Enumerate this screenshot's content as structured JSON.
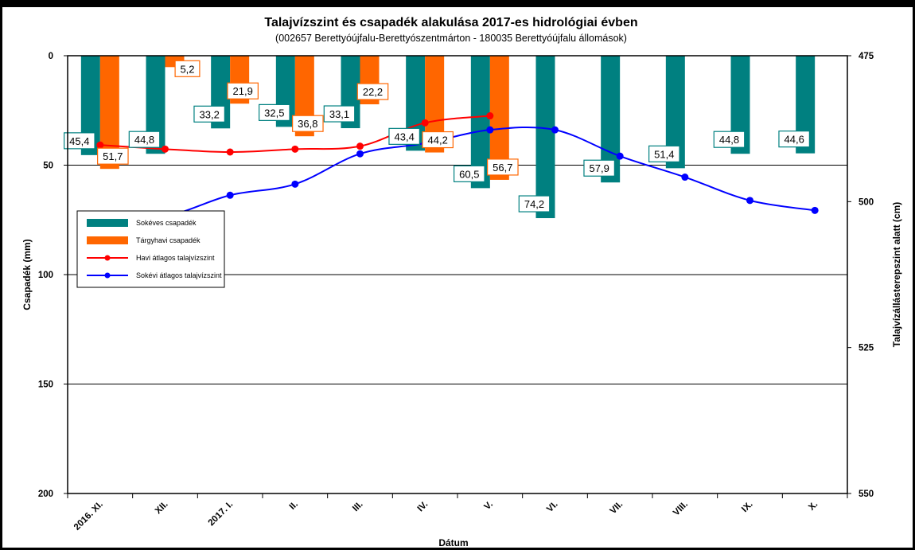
{
  "chart_data": {
    "type": "bar+line",
    "title": "Talajvízszint és csapadék alakulása 2017-es hidrológiai évben",
    "subtitle": "(002657  Berettyóújfalu-Berettyószentmárton  - 180035  Berettyóújfalu állomások)",
    "xlabel": "Dátum",
    "ylabel_left": "Csapadék (mm)",
    "ylabel_right": "Talajvízállásterepszint alatt (cm)",
    "categories": [
      "2016. XI.",
      "XII.",
      "2017. I.",
      "II.",
      "III.",
      "IV.",
      "V.",
      "VI.",
      "VII.",
      "VIII.",
      "IX.",
      "X."
    ],
    "left_axis": {
      "range": [
        0,
        200
      ],
      "inverted": true,
      "ticks": [
        "0",
        "50",
        "100",
        "150",
        "200"
      ]
    },
    "right_axis": {
      "range": [
        475,
        550
      ],
      "inverted": true,
      "ticks": [
        "475",
        "500",
        "525",
        "550"
      ]
    },
    "grid": "horizontal",
    "legend_position": "left-middle",
    "bar_series": [
      {
        "name": "Sokéves csapadék",
        "color": "#008080",
        "values": [
          45.4,
          44.8,
          33.2,
          32.5,
          33.1,
          43.4,
          60.5,
          74.2,
          57.9,
          51.4,
          44.8,
          44.6
        ],
        "labels": [
          "45,4",
          "44,8",
          "33,2",
          "32,5",
          "33,1",
          "43,4",
          "60,5",
          "74,2",
          "57,9",
          "51,4",
          "44,8",
          "44,6"
        ]
      },
      {
        "name": "Tárgyhavi csapadék",
        "color": "#ff6600",
        "values": [
          51.7,
          5.2,
          21.9,
          36.8,
          22.2,
          44.2,
          56.7
        ],
        "labels": [
          "51,7",
          "5,2",
          "21,9",
          "36,8",
          "22,2",
          "44,2",
          "56,7"
        ]
      }
    ],
    "line_series": [
      {
        "name": "Havi átlagos talajvízszint",
        "color": "#ff0000",
        "values": [
          490.3,
          491.0,
          491.5,
          491.0,
          490.5,
          486.5,
          485.3
        ]
      },
      {
        "name": "Sokévi átlagos talajvízszint",
        "color": "#0000ff",
        "values": [
          502.5,
          502.5,
          498.9,
          497.0,
          491.8,
          490.0,
          487.7,
          487.7,
          492.2,
          495.8,
          499.8,
          501.5
        ]
      }
    ]
  }
}
